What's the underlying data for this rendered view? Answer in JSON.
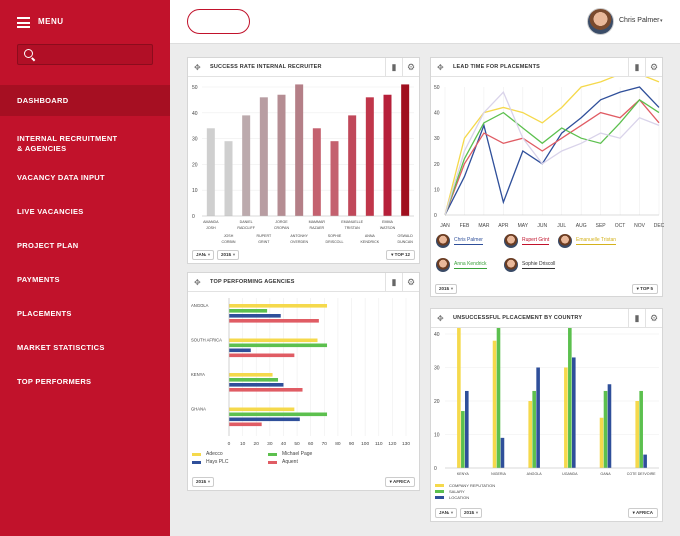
{
  "sidebar": {
    "menu_label": "MENU",
    "search_placeholder": "",
    "items": [
      "DASHBOARD",
      "INTERNAL RECRUITMENT\n& AGENCIES",
      "VACANCY DATA INPUT",
      "LIVE VACANCIES",
      "PROJECT PLAN",
      "PAYMENTS",
      "PLACEMENTS",
      "MARKET STATISCTICS",
      "TOP PERFORMERS"
    ]
  },
  "topbar": {
    "user_name": "Chris Palmer",
    "caret": "▾"
  },
  "colors": {
    "brand": "#c1122b",
    "yellow": "#f5d94c",
    "green": "#5cc04e",
    "blue": "#2f4f9a",
    "red": "#e05c64",
    "lavender": "#d9d3ea",
    "gray": "#cfcfcf"
  },
  "icons": {
    "move": "move-icon",
    "bars": "bar-chart-icon",
    "gear": "gear-icon"
  },
  "panels": {
    "success": {
      "title": "SUCCESS RATE INTERNAL RECRUITER",
      "month": "JAN",
      "year": "2015",
      "top": "TOP 12"
    },
    "lead": {
      "title": "LEAD TIME FOR PLACEMENTS",
      "year": "2015",
      "top": "TOP 5",
      "people": [
        {
          "name": "Chris Palmer",
          "color": "#2f4f9a"
        },
        {
          "name": "Rupert Grint",
          "color": "#c1122b"
        },
        {
          "name": "Emanuelle Tristan",
          "color": "#d4b21c"
        },
        {
          "name": "Anna Kendrick",
          "color": "#3aa13a"
        },
        {
          "name": "Sophie Driscoll",
          "color": "#333333"
        }
      ]
    },
    "agencies": {
      "title": "TOP PERFORMING AGENCIES",
      "year": "2015",
      "region": "AFRICA"
    },
    "unsuccessful": {
      "title": "UNSUCCESSFUL PLCACEMENT BY COUNTRY",
      "month": "JAN",
      "year": "2015",
      "region": "AFRICA"
    }
  },
  "chart_data": [
    {
      "type": "bar",
      "title": "SUCCESS RATE INTERNAL RECRUITER",
      "ylim": [
        0,
        50
      ],
      "yticks": [
        0,
        10,
        20,
        30,
        40,
        50
      ],
      "categories": [
        "AMANDA JOSH",
        "JOSH CORBIN",
        "DANIEL RADCLIFF",
        "RUPERT GRINT",
        "JORGE CROPAN",
        "ANTONHY OVERDEN",
        "MAMMAR RAZAER",
        "SOPHIE DRISCOLL",
        "EMANUELLE TRISTAN",
        "ANNA KENDRICK",
        "EMMA WATSON",
        "OSWALD DUNCAN"
      ],
      "values": [
        34,
        29,
        39,
        46,
        47,
        51,
        34,
        29,
        39,
        46,
        47,
        51
      ],
      "colors": [
        "#cfcfcf",
        "#cfcfcf",
        "#bcaaad",
        "#b89da2",
        "#b58d93",
        "#b47f87",
        "#c4616f",
        "#c4616f",
        "#c0485a",
        "#c0364a",
        "#b6203a",
        "#a0101f"
      ]
    },
    {
      "type": "line",
      "title": "LEAD TIME FOR PLACEMENTS",
      "ylim": [
        0,
        50
      ],
      "yticks": [
        0,
        10,
        20,
        30,
        40,
        50
      ],
      "categories": [
        "JAN",
        "FEB",
        "MAR",
        "APR",
        "MAY",
        "JUN",
        "JUL",
        "AUG",
        "SEP",
        "OCT",
        "NOV",
        "DEC"
      ],
      "series": [
        {
          "name": "Chris Palmer",
          "color": "#2f4f9a",
          "values": [
            0,
            15,
            35,
            5,
            25,
            20,
            32,
            38,
            45,
            48,
            50,
            42
          ]
        },
        {
          "name": "Rupert Grint",
          "color": "#e05c64",
          "values": [
            0,
            20,
            32,
            28,
            30,
            25,
            30,
            35,
            40,
            38,
            45,
            36
          ]
        },
        {
          "name": "Emanuelle Tristan",
          "color": "#f5d94c",
          "values": [
            0,
            30,
            40,
            42,
            40,
            36,
            42,
            50,
            52,
            55,
            55,
            52
          ]
        },
        {
          "name": "Anna Kendrick",
          "color": "#5cc04e",
          "values": [
            0,
            22,
            36,
            40,
            34,
            28,
            34,
            30,
            28,
            36,
            45,
            40
          ]
        },
        {
          "name": "Sophie Driscoll",
          "color": "#d9d3ea",
          "values": [
            0,
            25,
            40,
            48,
            30,
            20,
            25,
            28,
            32,
            30,
            38,
            35
          ]
        }
      ]
    },
    {
      "type": "bar",
      "orientation": "horizontal",
      "title": "TOP PERFORMING AGENCIES",
      "xlim": [
        0,
        130
      ],
      "xticks": [
        0,
        10,
        20,
        30,
        40,
        50,
        60,
        70,
        80,
        90,
        100,
        110,
        120,
        130
      ],
      "categories": [
        "ANGOLA",
        "SOUTH AFRICA",
        "KENYA",
        "GHANA"
      ],
      "series": [
        {
          "name": "Adecco",
          "color": "#f5d94c",
          "values": [
            72,
            65,
            32,
            48
          ]
        },
        {
          "name": "Michael Page",
          "color": "#5cc04e",
          "values": [
            28,
            72,
            36,
            72
          ]
        },
        {
          "name": "Hays PLC",
          "color": "#2f4f9a",
          "values": [
            38,
            16,
            40,
            52
          ]
        },
        {
          "name": "Aquent",
          "color": "#e05c64",
          "values": [
            66,
            48,
            54,
            24
          ]
        }
      ]
    },
    {
      "type": "bar",
      "title": "UNSUCCESSFUL PLCACEMENT BY COUNTRY",
      "ylim": [
        0,
        40
      ],
      "yticks": [
        0,
        10,
        20,
        30,
        40
      ],
      "categories": [
        "KENYA",
        "NIGERIA",
        "ANGOLA",
        "UGANDA",
        "GANA",
        "COTE DE'IVOIRE"
      ],
      "series": [
        {
          "name": "COMPANY REPUTATION",
          "color": "#f5d94c",
          "values": [
            43,
            38,
            20,
            30,
            15,
            20
          ]
        },
        {
          "name": "SALARY",
          "color": "#5cc04e",
          "values": [
            17,
            43,
            23,
            43,
            23,
            23
          ]
        },
        {
          "name": "LOCATION",
          "color": "#2f4f9a",
          "values": [
            23,
            9,
            30,
            33,
            25,
            4
          ]
        }
      ]
    }
  ]
}
